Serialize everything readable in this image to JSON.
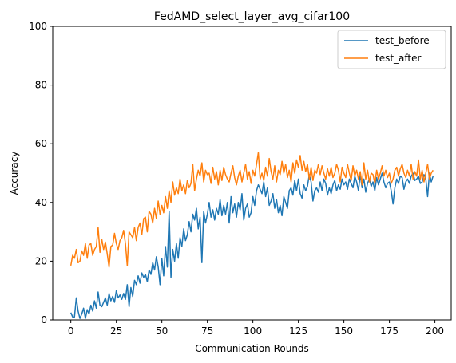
{
  "chart_data": {
    "type": "line",
    "title": "FedAMD_select_layer_avg_cifar100",
    "xlabel": "Communication Rounds",
    "ylabel": "Accuracy",
    "xlim": [
      -9.95,
      208.95
    ],
    "ylim": [
      0,
      100
    ],
    "xticks": [
      0,
      25,
      50,
      75,
      100,
      125,
      150,
      175,
      200
    ],
    "yticks": [
      0,
      20,
      40,
      60,
      80,
      100
    ],
    "grid": false,
    "legend_position": "top-right",
    "series": [
      {
        "name": "test_before",
        "color": "#1f77b4",
        "x": [
          0,
          1,
          2,
          3,
          4,
          5,
          6,
          7,
          8,
          9,
          10,
          11,
          12,
          13,
          14,
          15,
          16,
          17,
          18,
          19,
          20,
          21,
          22,
          23,
          24,
          25,
          26,
          27,
          28,
          29,
          30,
          31,
          32,
          33,
          34,
          35,
          36,
          37,
          38,
          39,
          40,
          41,
          42,
          43,
          44,
          45,
          46,
          47,
          48,
          49,
          50,
          51,
          52,
          53,
          54,
          55,
          56,
          57,
          58,
          59,
          60,
          61,
          62,
          63,
          64,
          65,
          66,
          67,
          68,
          69,
          70,
          71,
          72,
          73,
          74,
          75,
          76,
          77,
          78,
          79,
          80,
          81,
          82,
          83,
          84,
          85,
          86,
          87,
          88,
          89,
          90,
          91,
          92,
          93,
          94,
          95,
          96,
          97,
          98,
          99,
          100,
          101,
          102,
          103,
          104,
          105,
          106,
          107,
          108,
          109,
          110,
          111,
          112,
          113,
          114,
          115,
          116,
          117,
          118,
          119,
          120,
          121,
          122,
          123,
          124,
          125,
          126,
          127,
          128,
          129,
          130,
          131,
          132,
          133,
          134,
          135,
          136,
          137,
          138,
          139,
          140,
          141,
          142,
          143,
          144,
          145,
          146,
          147,
          148,
          149,
          150,
          151,
          152,
          153,
          154,
          155,
          156,
          157,
          158,
          159,
          160,
          161,
          162,
          163,
          164,
          165,
          166,
          167,
          168,
          169,
          170,
          171,
          172,
          173,
          174,
          175,
          176,
          177,
          178,
          179,
          180,
          181,
          182,
          183,
          184,
          185,
          186,
          187,
          188,
          189,
          190,
          191,
          192,
          193,
          194,
          195,
          196,
          197,
          198,
          199
        ],
        "values": [
          2.5,
          1.0,
          1.0,
          7.5,
          3.0,
          0.5,
          2.0,
          4.0,
          0.5,
          3.5,
          2.0,
          5.0,
          3.0,
          6.5,
          4.0,
          9.5,
          5.0,
          4.5,
          6.0,
          7.5,
          5.0,
          9.0,
          6.5,
          8.0,
          6.0,
          10.0,
          7.5,
          8.5,
          7.0,
          9.0,
          7.0,
          12.0,
          4.5,
          11.0,
          8.0,
          13.5,
          12.0,
          15.0,
          12.5,
          16.0,
          14.5,
          15.5,
          13.0,
          17.0,
          15.5,
          19.5,
          17.0,
          21.5,
          18.0,
          12.0,
          21.0,
          15.0,
          25.0,
          18.0,
          37.0,
          14.5,
          24.0,
          20.0,
          26.0,
          21.0,
          28.0,
          25.0,
          31.0,
          27.0,
          29.0,
          33.5,
          30.0,
          36.0,
          34.0,
          38.0,
          31.0,
          35.0,
          19.5,
          37.0,
          33.0,
          36.0,
          40.0,
          35.0,
          37.5,
          34.0,
          38.0,
          36.0,
          41.0,
          35.5,
          39.0,
          36.0,
          40.0,
          33.0,
          42.0,
          36.5,
          39.5,
          35.0,
          40.0,
          37.5,
          43.0,
          34.0,
          38.0,
          39.5,
          35.0,
          36.5,
          42.0,
          39.0,
          44.0,
          46.0,
          44.5,
          43.0,
          47.0,
          42.0,
          45.0,
          39.0,
          40.5,
          43.0,
          38.0,
          41.0,
          36.5,
          39.0,
          35.5,
          42.0,
          40.0,
          38.0,
          44.0,
          45.0,
          42.5,
          47.5,
          44.0,
          48.0,
          43.0,
          41.5,
          46.0,
          44.0,
          45.5,
          49.5,
          47.0,
          40.5,
          44.0,
          45.0,
          43.5,
          47.0,
          44.0,
          48.0,
          46.5,
          42.5,
          45.0,
          43.0,
          46.0,
          47.5,
          44.0,
          46.0,
          44.5,
          48.0,
          46.0,
          47.0,
          44.5,
          48.0,
          46.5,
          45.0,
          49.0,
          47.0,
          44.0,
          49.5,
          45.0,
          48.0,
          43.5,
          46.5,
          48.0,
          45.5,
          47.0,
          44.0,
          48.5,
          46.0,
          48.0,
          50.0,
          47.0,
          45.0,
          46.5,
          47.0,
          44.0,
          39.5,
          45.0,
          48.0,
          46.5,
          49.0,
          48.5,
          44.5,
          47.0,
          48.0,
          46.5,
          49.0,
          50.0,
          47.5,
          48.0,
          49.0,
          46.5,
          47.0,
          49.5,
          48.0,
          42.0,
          50.0,
          47.0,
          49.0
        ]
      },
      {
        "name": "test_after",
        "color": "#ff7f0e",
        "x": [
          0,
          1,
          2,
          3,
          4,
          5,
          6,
          7,
          8,
          9,
          10,
          11,
          12,
          13,
          14,
          15,
          16,
          17,
          18,
          19,
          20,
          21,
          22,
          23,
          24,
          25,
          26,
          27,
          28,
          29,
          30,
          31,
          32,
          33,
          34,
          35,
          36,
          37,
          38,
          39,
          40,
          41,
          42,
          43,
          44,
          45,
          46,
          47,
          48,
          49,
          50,
          51,
          52,
          53,
          54,
          55,
          56,
          57,
          58,
          59,
          60,
          61,
          62,
          63,
          64,
          65,
          66,
          67,
          68,
          69,
          70,
          71,
          72,
          73,
          74,
          75,
          76,
          77,
          78,
          79,
          80,
          81,
          82,
          83,
          84,
          85,
          86,
          87,
          88,
          89,
          90,
          91,
          92,
          93,
          94,
          95,
          96,
          97,
          98,
          99,
          100,
          101,
          102,
          103,
          104,
          105,
          106,
          107,
          108,
          109,
          110,
          111,
          112,
          113,
          114,
          115,
          116,
          117,
          118,
          119,
          120,
          121,
          122,
          123,
          124,
          125,
          126,
          127,
          128,
          129,
          130,
          131,
          132,
          133,
          134,
          135,
          136,
          137,
          138,
          139,
          140,
          141,
          142,
          143,
          144,
          145,
          146,
          147,
          148,
          149,
          150,
          151,
          152,
          153,
          154,
          155,
          156,
          157,
          158,
          159,
          160,
          161,
          162,
          163,
          164,
          165,
          166,
          167,
          168,
          169,
          170,
          171,
          172,
          173,
          174,
          175,
          176,
          177,
          178,
          179,
          180,
          181,
          182,
          183,
          184,
          185,
          186,
          187,
          188,
          189,
          190,
          191,
          192,
          193,
          194,
          195,
          196,
          197,
          198,
          199
        ],
        "values": [
          18.5,
          22.0,
          21.0,
          24.0,
          19.5,
          20.0,
          23.5,
          22.0,
          26.0,
          21.0,
          25.5,
          26.0,
          22.0,
          24.0,
          25.0,
          31.5,
          23.0,
          27.5,
          24.0,
          26.5,
          22.5,
          18.0,
          25.0,
          25.5,
          29.5,
          26.0,
          24.0,
          27.0,
          28.0,
          30.5,
          26.0,
          18.5,
          30.0,
          29.0,
          28.0,
          31.5,
          27.0,
          31.5,
          33.0,
          29.0,
          34.5,
          35.0,
          30.0,
          37.0,
          36.0,
          33.0,
          38.0,
          34.5,
          40.5,
          36.0,
          39.0,
          36.5,
          42.0,
          38.0,
          44.0,
          40.0,
          47.0,
          42.5,
          45.0,
          43.0,
          48.0,
          44.0,
          46.0,
          43.0,
          47.5,
          45.0,
          46.5,
          53.0,
          44.0,
          48.0,
          51.0,
          49.0,
          53.5,
          47.0,
          51.0,
          49.5,
          50.0,
          46.5,
          52.0,
          48.0,
          50.5,
          46.0,
          51.0,
          47.5,
          52.0,
          49.5,
          48.0,
          47.0,
          50.0,
          52.5,
          48.5,
          46.0,
          49.0,
          51.0,
          47.0,
          50.0,
          53.0,
          48.0,
          50.5,
          46.5,
          51.0,
          49.0,
          53.0,
          57.0,
          48.0,
          50.0,
          47.5,
          52.0,
          49.0,
          55.0,
          50.5,
          48.0,
          52.5,
          47.0,
          51.0,
          49.5,
          54.0,
          50.0,
          53.0,
          48.5,
          51.0,
          47.0,
          53.5,
          50.0,
          54.5,
          52.0,
          56.0,
          51.0,
          54.0,
          50.5,
          53.0,
          48.0,
          52.0,
          47.5,
          51.0,
          50.0,
          53.0,
          49.5,
          52.5,
          50.0,
          48.0,
          51.5,
          49.0,
          52.0,
          48.5,
          50.0,
          53.0,
          51.0,
          47.0,
          52.0,
          50.0,
          48.5,
          53.0,
          50.0,
          47.5,
          52.5,
          49.0,
          51.0,
          48.0,
          50.5,
          46.0,
          53.5,
          48.0,
          51.0,
          47.0,
          50.0,
          49.5,
          46.5,
          51.0,
          48.0,
          50.0,
          52.5,
          49.0,
          51.0,
          48.5,
          50.0,
          46.5,
          48.0,
          51.0,
          52.0,
          49.0,
          51.5,
          53.0,
          50.0,
          48.5,
          51.0,
          49.0,
          53.0,
          48.0,
          50.5,
          49.0,
          54.5,
          48.0,
          51.0,
          47.0,
          50.0,
          53.0,
          48.0,
          50.0,
          51.0
        ]
      }
    ]
  }
}
